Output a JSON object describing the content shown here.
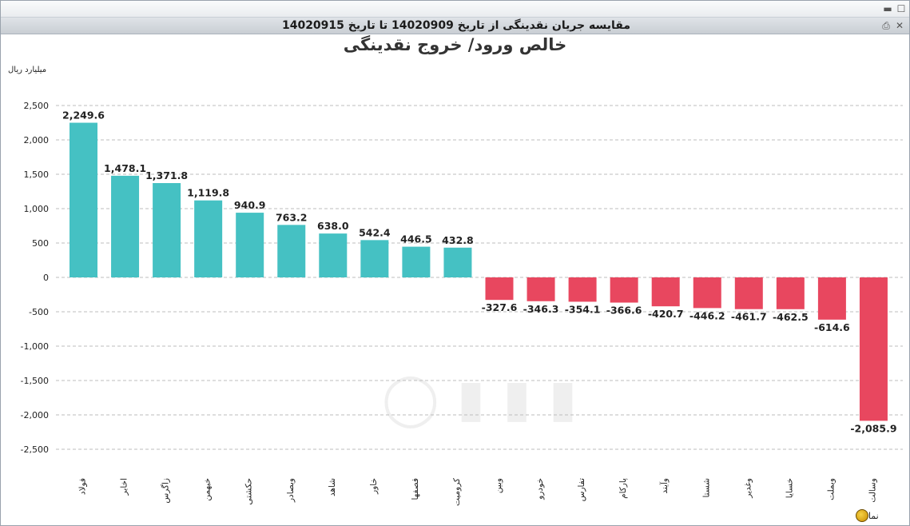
{
  "window": {
    "panel_title": "مقایسه جریان نقدینگی از تاریخ 14020909 تا تاریخ 14020915"
  },
  "footer": {
    "label": "نماد"
  },
  "colors": {
    "positive": "#45c1c3",
    "negative": "#e8475f",
    "grid": "#bdbdbd"
  },
  "chart_data": {
    "type": "bar",
    "title": "خالص ورود/ خروج نقدینگی",
    "ylabel": "میلیارد ریال",
    "xlabel": "نماد",
    "ylim": [
      -2500,
      2500
    ],
    "yticks": [
      2500,
      2000,
      1500,
      1000,
      500,
      0,
      -500,
      -1000,
      -1500,
      -2000,
      -2500
    ],
    "ytick_labels": [
      "2,500",
      "2,000",
      "1,500",
      "1,000",
      "500",
      "0",
      "-500",
      "-1,000",
      "-1,500",
      "-2,000",
      "-2,500"
    ],
    "grid": true,
    "categories": [
      "فولاد",
      "اخابر",
      "زاگرس",
      "خبهمن",
      "حکشتی",
      "وبصادر",
      "شاهد",
      "خاور",
      "فصفها",
      "کرومیت",
      "وبین",
      "خودرو",
      "تفارس",
      "پارکام",
      "وآیند",
      "شستا",
      "وغدیر",
      "خسایا",
      "وبملت",
      "وسالت"
    ],
    "values": [
      2249.6,
      1478.1,
      1371.8,
      1119.8,
      940.9,
      763.2,
      638.0,
      542.4,
      446.5,
      432.8,
      -327.6,
      -346.3,
      -354.1,
      -366.6,
      -420.7,
      -446.2,
      -461.7,
      -462.5,
      -614.6,
      -2085.9
    ],
    "value_labels": [
      "2,249.6",
      "1,478.1",
      "1,371.8",
      "1,119.8",
      "940.9",
      "763.2",
      "638.0",
      "542.4",
      "446.5",
      "432.8",
      "-327.6",
      "-346.3",
      "-354.1",
      "-366.6",
      "-420.7",
      "-446.2",
      "-461.7",
      "-462.5",
      "-614.6",
      "-2,085.9"
    ]
  }
}
